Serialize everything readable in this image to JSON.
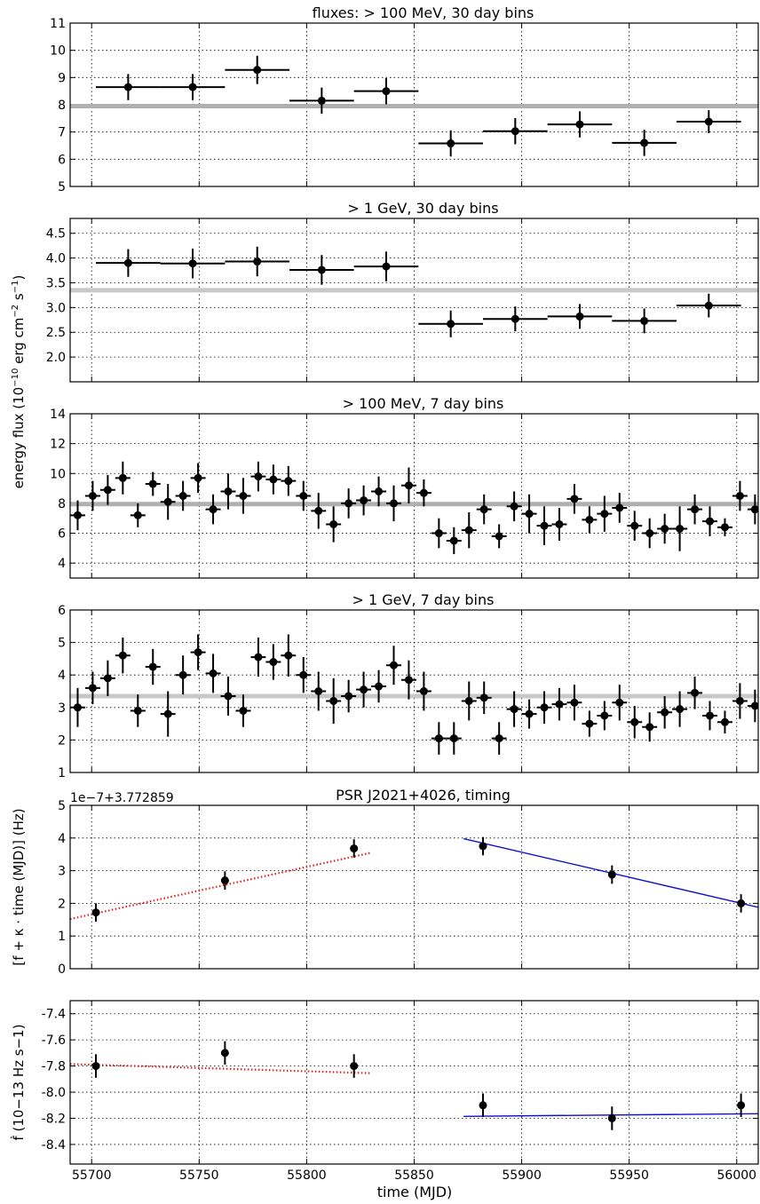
{
  "figure": {
    "shared_xlabel": "time (MJD)",
    "flux_ylabel": "energy flux (10",
    "flux_ylabel_exp": "−10",
    "flux_ylabel_tail": " erg cm",
    "flux_ylabel_exp2": "−2",
    "flux_ylabel_tail2": " s",
    "flux_ylabel_exp3": "−1",
    "flux_ylabel_end": ")"
  },
  "chart_data": [
    {
      "type": "scatter",
      "title": "fluxes: > 100 MeV, 30 day bins",
      "xlim": [
        55690,
        56010
      ],
      "ylim": [
        5,
        11
      ],
      "yticks": [
        "5",
        "6",
        "7",
        "8",
        "9",
        "10",
        "11"
      ],
      "xticks": [
        "55700",
        "55750",
        "55800",
        "55850",
        "55900",
        "55950",
        "56000"
      ],
      "grid": true,
      "hline": 7.95,
      "hline_color": "#b0b0b0",
      "xerr": 15,
      "x": [
        55717,
        55747,
        55777,
        55807,
        55837,
        55867,
        55897,
        55927,
        55957,
        55987
      ],
      "y": [
        8.65,
        8.65,
        9.28,
        8.15,
        8.5,
        6.58,
        7.03,
        7.28,
        6.6,
        7.38
      ],
      "yerr": [
        0.48,
        0.48,
        0.52,
        0.48,
        0.48,
        0.48,
        0.48,
        0.48,
        0.48,
        0.42
      ]
    },
    {
      "type": "scatter",
      "title": "> 1 GeV, 30 day bins",
      "xlim": [
        55690,
        56010
      ],
      "ylim": [
        1.5,
        4.8
      ],
      "yticks": [
        "2.0",
        "2.5",
        "3.0",
        "3.5",
        "4.0",
        "4.5"
      ],
      "xticks": [
        "55700",
        "55750",
        "55800",
        "55850",
        "55900",
        "55950",
        "56000"
      ],
      "grid": true,
      "hline": 3.35,
      "hline_color": "#c8c8c8",
      "xerr": 15,
      "x": [
        55717,
        55747,
        55777,
        55807,
        55837,
        55867,
        55897,
        55927,
        55957,
        55987
      ],
      "y": [
        3.9,
        3.89,
        3.93,
        3.76,
        3.83,
        2.67,
        2.77,
        2.82,
        2.73,
        3.04
      ],
      "yerr": [
        0.28,
        0.3,
        0.3,
        0.3,
        0.3,
        0.27,
        0.25,
        0.25,
        0.25,
        0.24
      ]
    },
    {
      "type": "scatter",
      "title": "> 100 MeV, 7 day bins",
      "xlim": [
        55690,
        56010
      ],
      "ylim": [
        3,
        14
      ],
      "yticks": [
        "4",
        "6",
        "8",
        "10",
        "12",
        "14"
      ],
      "xticks": [
        "55700",
        "55750",
        "55800",
        "55850",
        "55900",
        "55950",
        "56000"
      ],
      "grid": true,
      "hline": 7.95,
      "hline_color": "#b0b0b0",
      "xerr": 3.5,
      "x": [
        55693.5,
        55700.5,
        55707.5,
        55714.5,
        55721.5,
        55728.5,
        55735.5,
        55742.5,
        55749.5,
        55756.5,
        55763.5,
        55770.5,
        55777.5,
        55784.5,
        55791.5,
        55798.5,
        55805.5,
        55812.5,
        55819.5,
        55826.5,
        55833.5,
        55840.5,
        55847.5,
        55854.5,
        55861.5,
        55868.5,
        55875.5,
        55882.5,
        55889.5,
        55896.5,
        55903.5,
        55910.5,
        55917.5,
        55924.5,
        55931.5,
        55938.5,
        55945.5,
        55952.5,
        55959.5,
        55966.5,
        55973.5,
        55980.5,
        55987.5,
        55994.5,
        56001.5,
        56008.5
      ],
      "y": [
        7.2,
        8.5,
        8.9,
        9.7,
        7.2,
        9.3,
        8.1,
        8.5,
        9.7,
        7.6,
        8.8,
        8.5,
        9.8,
        9.6,
        9.5,
        8.5,
        7.5,
        6.6,
        8.0,
        8.2,
        8.8,
        8.0,
        9.2,
        8.7,
        6.0,
        5.5,
        6.2,
        7.6,
        5.8,
        7.8,
        7.3,
        6.5,
        6.6,
        8.3,
        6.9,
        7.3,
        7.7,
        6.5,
        6.0,
        6.3,
        6.3,
        7.6,
        6.8,
        6.4,
        8.5,
        7.6
      ],
      "yerr": [
        1.0,
        1.0,
        1.0,
        1.1,
        0.8,
        0.8,
        1.2,
        1.0,
        1.0,
        1.0,
        1.2,
        1.2,
        1.0,
        1.0,
        1.0,
        1.0,
        1.2,
        1.2,
        1.0,
        1.0,
        1.0,
        1.2,
        1.2,
        0.9,
        1.0,
        0.9,
        1.2,
        1.0,
        0.8,
        1.0,
        1.3,
        1.3,
        1.1,
        1.0,
        0.9,
        1.2,
        1.0,
        1.0,
        1.0,
        1.0,
        1.5,
        1.0,
        1.0,
        0.6,
        1.0,
        1.0
      ]
    },
    {
      "type": "scatter",
      "title": "> 1 GeV, 7 day bins",
      "xlim": [
        55690,
        56010
      ],
      "ylim": [
        1,
        6
      ],
      "yticks": [
        "1",
        "2",
        "3",
        "4",
        "5",
        "6"
      ],
      "xticks": [
        "55700",
        "55750",
        "55800",
        "55850",
        "55900",
        "55950",
        "56000"
      ],
      "grid": true,
      "hline": 3.35,
      "hline_color": "#c8c8c8",
      "xerr": 3.5,
      "x": [
        55693.5,
        55700.5,
        55707.5,
        55714.5,
        55721.5,
        55728.5,
        55735.5,
        55742.5,
        55749.5,
        55756.5,
        55763.5,
        55770.5,
        55777.5,
        55784.5,
        55791.5,
        55798.5,
        55805.5,
        55812.5,
        55819.5,
        55826.5,
        55833.5,
        55840.5,
        55847.5,
        55854.5,
        55861.5,
        55868.5,
        55875.5,
        55882.5,
        55889.5,
        55896.5,
        55903.5,
        55910.5,
        55917.5,
        55924.5,
        55931.5,
        55938.5,
        55945.5,
        55952.5,
        55959.5,
        55966.5,
        55973.5,
        55980.5,
        55987.5,
        55994.5,
        56001.5,
        56008.5
      ],
      "y": [
        3.0,
        3.6,
        3.9,
        4.6,
        2.9,
        4.25,
        2.8,
        4.0,
        4.7,
        4.05,
        3.35,
        2.9,
        4.55,
        4.4,
        4.6,
        4.0,
        3.5,
        3.2,
        3.35,
        3.55,
        3.65,
        4.3,
        3.85,
        3.5,
        2.05,
        2.05,
        3.2,
        3.3,
        2.05,
        2.95,
        2.8,
        3.0,
        3.1,
        3.15,
        2.5,
        2.75,
        3.15,
        2.55,
        2.4,
        2.85,
        2.95,
        3.45,
        2.75,
        2.55,
        3.2,
        3.05
      ],
      "yerr": [
        0.6,
        0.5,
        0.55,
        0.55,
        0.5,
        0.55,
        0.7,
        0.6,
        0.55,
        0.6,
        0.6,
        0.5,
        0.6,
        0.55,
        0.65,
        0.55,
        0.6,
        0.7,
        0.5,
        0.55,
        0.5,
        0.6,
        0.6,
        0.6,
        0.5,
        0.5,
        0.6,
        0.5,
        0.5,
        0.55,
        0.45,
        0.5,
        0.5,
        0.55,
        0.4,
        0.45,
        0.55,
        0.5,
        0.45,
        0.5,
        0.55,
        0.5,
        0.45,
        0.35,
        0.55,
        0.5
      ]
    },
    {
      "type": "scatter",
      "title": "PSR J2021+4026, timing",
      "offset_text": "1e−7+3.772859",
      "ylabel": "[f + κ · time (MJD)] (Hz)",
      "xlim": [
        55690,
        56010
      ],
      "ylim": [
        0,
        5
      ],
      "yticks": [
        "0",
        "1",
        "2",
        "3",
        "4",
        "5"
      ],
      "xticks": [
        "55700",
        "55750",
        "55800",
        "55850",
        "55900",
        "55950",
        "56000"
      ],
      "grid": true,
      "x": [
        55702,
        55762,
        55822,
        55882,
        55942,
        56002
      ],
      "y": [
        1.72,
        2.7,
        3.68,
        3.75,
        2.88,
        2.0
      ],
      "yerr": [
        0.28,
        0.28,
        0.28,
        0.28,
        0.28,
        0.28
      ],
      "fits": [
        {
          "x": [
            55690,
            55830
          ],
          "y": [
            1.52,
            3.55
          ],
          "color": "#e02020",
          "style": "dotted"
        },
        {
          "x": [
            55873,
            56010
          ],
          "y": [
            3.98,
            1.88
          ],
          "color": "#1010d0",
          "style": "solid"
        }
      ]
    },
    {
      "type": "scatter",
      "ylabel": "ḟ (10−13 Hz s−1)",
      "xlabel": "time (MJD)",
      "xlim": [
        55690,
        56010
      ],
      "ylim": [
        -8.55,
        -7.3
      ],
      "yticks": [
        "-8.4",
        "-8.2",
        "-8.0",
        "-7.8",
        "-7.6",
        "-7.4"
      ],
      "ytick_values": [
        -8.4,
        -8.2,
        -8.0,
        -7.8,
        -7.6,
        -7.4
      ],
      "xticks": [
        "55700",
        "55750",
        "55800",
        "55850",
        "55900",
        "55950",
        "56000"
      ],
      "grid": true,
      "x": [
        55702,
        55762,
        55822,
        55882,
        55942,
        56002
      ],
      "y": [
        -7.8,
        -7.7,
        -7.8,
        -8.1,
        -8.2,
        -8.1
      ],
      "yerr": [
        0.09,
        0.09,
        0.09,
        0.09,
        0.09,
        0.09
      ],
      "fits": [
        {
          "x": [
            55690,
            55830
          ],
          "y": [
            -7.785,
            -7.855
          ],
          "color": "#e02020",
          "style": "dotted"
        },
        {
          "x": [
            55873,
            56010
          ],
          "y": [
            -8.185,
            -8.165
          ],
          "color": "#1010d0",
          "style": "solid"
        }
      ]
    }
  ]
}
